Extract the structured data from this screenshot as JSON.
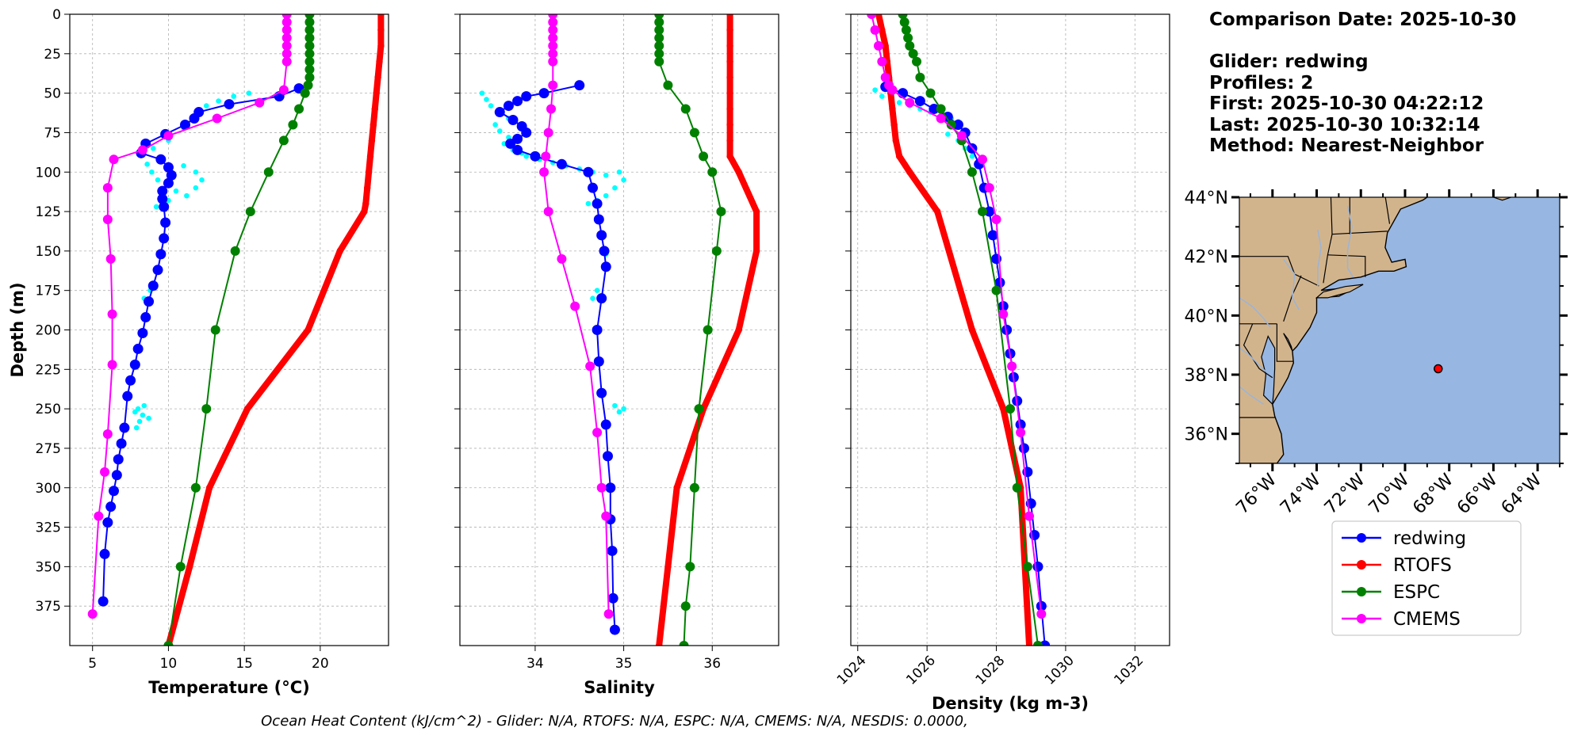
{
  "info": {
    "comparison_date": "Comparison Date: 2025-10-30",
    "glider": "Glider: redwing",
    "profiles": "Profiles: 2",
    "first": "First: 2025-10-30 04:22:12",
    "last": "Last: 2025-10-30 10:32:14",
    "method": "Method: Nearest-Neighbor"
  },
  "footer": "Ocean Heat Content (kJ/cm^2) - Glider: N/A,  RTOFS: N/A,  ESPC: N/A,  CMEMS: N/A,  NESDIS: 0.0000,",
  "colors": {
    "redwing": "#0000ff",
    "RTOFS": "#ff0000",
    "ESPC": "#008000",
    "CMEMS": "#ff00ff",
    "raw": "#00ffff",
    "land": "#d2b48c",
    "ocean": "#97b6e1"
  },
  "chart_data": [
    {
      "type": "line",
      "title": "",
      "xlabel": "Temperature (°C)",
      "ylabel": "Depth (m)",
      "xlim": [
        3.5,
        24.5
      ],
      "ylim": [
        400,
        0
      ],
      "xticks": [
        5,
        10,
        15,
        20
      ],
      "yticks": [
        0,
        25,
        50,
        75,
        100,
        125,
        150,
        175,
        200,
        225,
        250,
        275,
        300,
        325,
        350,
        375
      ],
      "grid": true,
      "raw": {
        "name": "redwing raw",
        "color": "cyan",
        "x": [
          12.0,
          12.5,
          13.3,
          14.3,
          15.3,
          11.8,
          11.0,
          10.0,
          9.0,
          8.3,
          8.6,
          8.9,
          9.3,
          9.9,
          10.5,
          11.2,
          11.8,
          12.2,
          11.8,
          11.0,
          10.0,
          9.2,
          8.8,
          8.4,
          8.0,
          7.8,
          8.3,
          8.7,
          8.4,
          8.1,
          7.9
        ],
        "y": [
          62,
          58,
          55,
          52,
          50,
          66,
          72,
          80,
          85,
          88,
          95,
          100,
          105,
          108,
          112,
          115,
          110,
          105,
          100,
          96,
          118,
          122,
          175,
          180,
          250,
          252,
          254,
          256,
          248,
          258,
          262
        ]
      },
      "series": [
        {
          "name": "redwing",
          "color": "blue",
          "x": [
            18.6,
            17.3,
            14.0,
            12.0,
            11.7,
            11.1,
            9.8,
            8.5,
            8.2,
            9.5,
            10.0,
            10.2,
            10.0,
            9.6,
            9.6,
            9.7,
            9.8,
            9.7,
            9.5,
            9.3,
            9.0,
            8.7,
            8.5,
            8.3,
            8.0,
            7.8,
            7.5,
            7.3,
            7.1,
            6.9,
            6.7,
            6.6,
            6.4,
            6.2,
            6.0,
            5.8,
            5.7
          ],
          "y": [
            47,
            52,
            57,
            62,
            66,
            70,
            76,
            82,
            88,
            92,
            97,
            102,
            107,
            112,
            117,
            122,
            132,
            142,
            152,
            162,
            172,
            182,
            192,
            202,
            212,
            222,
            232,
            242,
            262,
            272,
            282,
            292,
            302,
            312,
            322,
            342,
            372
          ]
        },
        {
          "name": "RTOFS",
          "color": "red",
          "x": [
            24.0,
            24.0,
            24.0,
            23.9,
            23.8,
            23.7,
            23.6,
            23.5,
            23.4,
            23.3,
            23.2,
            23.1,
            23.0,
            22.9,
            21.3,
            19.2,
            15.2,
            12.7,
            11.4,
            10.0
          ],
          "y": [
            0,
            10,
            20,
            30,
            40,
            50,
            60,
            70,
            80,
            90,
            100,
            110,
            120,
            125,
            150,
            200,
            250,
            300,
            350,
            400
          ]
        },
        {
          "name": "ESPC",
          "color": "green",
          "x": [
            19.3,
            19.3,
            19.3,
            19.3,
            19.3,
            19.3,
            19.3,
            19.3,
            19.3,
            19.2,
            19.0,
            18.6,
            18.2,
            17.6,
            16.6,
            15.4,
            14.4,
            13.1,
            12.5,
            11.8,
            10.8,
            10.0
          ],
          "y": [
            0,
            5,
            10,
            15,
            20,
            25,
            30,
            35,
            40,
            45,
            50,
            60,
            70,
            80,
            100,
            125,
            150,
            200,
            250,
            300,
            350,
            400
          ]
        },
        {
          "name": "CMEMS",
          "color": "magenta",
          "x": [
            17.8,
            17.8,
            17.8,
            17.8,
            17.8,
            17.8,
            17.8,
            17.6,
            16.0,
            13.2,
            10.0,
            8.3,
            6.4,
            6.0,
            6.0,
            6.2,
            6.3,
            6.3,
            6.0,
            5.8,
            5.4,
            5.0
          ],
          "y": [
            0,
            5,
            10,
            15,
            20,
            25,
            30,
            48,
            56,
            66,
            77,
            86,
            92,
            110,
            130,
            155,
            190,
            222,
            266,
            290,
            318,
            380
          ]
        }
      ]
    },
    {
      "type": "line",
      "title": "",
      "xlabel": "Salinity",
      "ylabel": "",
      "xlim": [
        33.15,
        36.75
      ],
      "ylim": [
        400,
        0
      ],
      "xticks": [
        34,
        35,
        36
      ],
      "yticks": [
        0,
        25,
        50,
        75,
        100,
        125,
        150,
        175,
        200,
        225,
        250,
        275,
        300,
        325,
        350,
        375
      ],
      "grid": true,
      "raw": {
        "name": "redwing raw",
        "color": "cyan",
        "x": [
          33.4,
          33.45,
          33.5,
          33.6,
          33.7,
          33.55,
          33.6,
          33.7,
          33.65,
          33.75,
          33.85,
          33.9,
          34.05,
          34.2,
          34.35,
          34.5,
          34.65,
          34.8,
          34.95,
          35.0,
          34.9,
          34.8,
          34.7,
          34.6,
          34.9,
          34.95,
          35.0,
          34.7,
          34.65,
          34.8
        ],
        "y": [
          50,
          54,
          58,
          62,
          66,
          70,
          74,
          78,
          82,
          86,
          88,
          90,
          92,
          94,
          96,
          98,
          100,
          102,
          100,
          105,
          110,
          115,
          118,
          120,
          248,
          252,
          250,
          175,
          180,
          152
        ]
      },
      "series": [
        {
          "name": "redwing",
          "color": "blue",
          "x": [
            34.5,
            34.1,
            33.9,
            33.8,
            33.7,
            33.6,
            33.75,
            33.85,
            33.9,
            33.8,
            33.72,
            33.8,
            34.0,
            34.3,
            34.6,
            34.65,
            34.7,
            34.72,
            34.75,
            34.78,
            34.8,
            34.75,
            34.7,
            34.72,
            34.75,
            34.8,
            34.82,
            34.85,
            34.85,
            34.87,
            34.88,
            34.9
          ],
          "y": [
            45,
            50,
            52,
            55,
            58,
            62,
            67,
            71,
            75,
            79,
            82,
            86,
            90,
            95,
            100,
            110,
            120,
            130,
            140,
            150,
            160,
            180,
            200,
            220,
            240,
            260,
            280,
            300,
            320,
            340,
            370,
            390
          ]
        },
        {
          "name": "RTOFS",
          "color": "red",
          "x": [
            36.2,
            36.2,
            36.2,
            36.2,
            36.2,
            36.2,
            36.2,
            36.2,
            36.2,
            36.2,
            36.3,
            36.5,
            36.5,
            36.3,
            35.9,
            35.6,
            35.5,
            35.4
          ],
          "y": [
            0,
            10,
            20,
            30,
            40,
            50,
            60,
            70,
            80,
            90,
            100,
            125,
            150,
            200,
            250,
            300,
            350,
            400
          ]
        },
        {
          "name": "ESPC",
          "color": "green",
          "x": [
            35.4,
            35.4,
            35.4,
            35.4,
            35.4,
            35.4,
            35.4,
            35.5,
            35.7,
            35.8,
            35.9,
            36.0,
            36.1,
            36.05,
            35.95,
            35.85,
            35.8,
            35.75,
            35.7,
            35.68
          ],
          "y": [
            0,
            5,
            10,
            15,
            20,
            25,
            30,
            45,
            60,
            75,
            90,
            100,
            125,
            150,
            200,
            250,
            300,
            350,
            375,
            400
          ]
        },
        {
          "name": "CMEMS",
          "color": "magenta",
          "x": [
            34.2,
            34.2,
            34.2,
            34.2,
            34.2,
            34.2,
            34.2,
            34.2,
            34.18,
            34.15,
            34.12,
            34.1,
            34.15,
            34.3,
            34.45,
            34.62,
            34.7,
            34.75,
            34.8,
            34.83
          ],
          "y": [
            0,
            5,
            10,
            15,
            20,
            25,
            30,
            45,
            60,
            75,
            90,
            100,
            125,
            155,
            185,
            223,
            265,
            300,
            318,
            380
          ]
        }
      ]
    },
    {
      "type": "line",
      "title": "",
      "xlabel": "Density (kg m-3)",
      "ylabel": "",
      "xlim": [
        1023.8,
        1033.0
      ],
      "ylim": [
        400,
        0
      ],
      "xticks": [
        1024,
        1026,
        1028,
        1030,
        1032
      ],
      "yticks": [
        0,
        25,
        50,
        75,
        100,
        125,
        150,
        175,
        200,
        225,
        250,
        275,
        300,
        325,
        350,
        375
      ],
      "grid": true,
      "raw": {
        "name": "redwing raw",
        "color": "cyan",
        "x": [
          1024.5,
          1024.7,
          1025.2,
          1025.5,
          1025.8,
          1026.1,
          1026.4,
          1026.7,
          1026.9,
          1026.8,
          1026.6,
          1026.9,
          1027.1,
          1027.3,
          1027.5
        ],
        "y": [
          48,
          52,
          56,
          58,
          60,
          62,
          64,
          66,
          68,
          72,
          76,
          80,
          85,
          90,
          95
        ]
      },
      "series": [
        {
          "name": "redwing",
          "color": "blue",
          "x": [
            1024.8,
            1025.3,
            1025.8,
            1026.2,
            1026.6,
            1026.9,
            1027.1,
            1027.3,
            1027.5,
            1027.65,
            1027.8,
            1027.9,
            1028.0,
            1028.1,
            1028.2,
            1028.3,
            1028.4,
            1028.5,
            1028.6,
            1028.7,
            1028.8,
            1028.9,
            1029.0,
            1029.1,
            1029.2,
            1029.3,
            1029.4
          ],
          "y": [
            46,
            50,
            55,
            60,
            65,
            70,
            75,
            85,
            95,
            110,
            125,
            140,
            155,
            170,
            185,
            200,
            215,
            230,
            245,
            260,
            275,
            290,
            310,
            330,
            350,
            375,
            400
          ]
        },
        {
          "name": "RTOFS",
          "color": "red",
          "x": [
            1024.6,
            1024.7,
            1024.8,
            1024.85,
            1024.9,
            1024.95,
            1025.0,
            1025.05,
            1025.1,
            1025.2,
            1025.5,
            1026.3,
            1027.3,
            1028.2,
            1028.7,
            1028.95
          ],
          "y": [
            0,
            10,
            20,
            30,
            40,
            50,
            60,
            70,
            80,
            90,
            100,
            125,
            200,
            250,
            300,
            400
          ]
        },
        {
          "name": "ESPC",
          "color": "green",
          "x": [
            1025.3,
            1025.35,
            1025.4,
            1025.45,
            1025.5,
            1025.6,
            1025.7,
            1025.8,
            1026.1,
            1026.4,
            1026.7,
            1027.0,
            1027.3,
            1027.6,
            1028.0,
            1028.4,
            1028.6,
            1028.9,
            1029.2
          ],
          "y": [
            0,
            5,
            10,
            15,
            20,
            25,
            30,
            40,
            50,
            60,
            70,
            80,
            100,
            125,
            175,
            250,
            300,
            350,
            400
          ]
        },
        {
          "name": "CMEMS",
          "color": "magenta",
          "x": [
            1024.4,
            1024.5,
            1024.6,
            1024.7,
            1024.8,
            1024.9,
            1025.0,
            1025.5,
            1026.4,
            1027.0,
            1027.6,
            1027.8,
            1028.0,
            1028.2,
            1028.45,
            1028.7,
            1028.95,
            1029.3
          ],
          "y": [
            0,
            10,
            20,
            30,
            40,
            45,
            48,
            56,
            66,
            77,
            92,
            110,
            130,
            190,
            223,
            265,
            318,
            380
          ]
        }
      ]
    }
  ],
  "map": {
    "lat_labels": [
      "44°N",
      "42°N",
      "40°N",
      "38°N",
      "36°N"
    ],
    "lon_labels": [
      "76°W",
      "74°W",
      "72°W",
      "70°W",
      "68°W",
      "66°W",
      "64°W"
    ],
    "lon_range": [
      -77.5,
      -63.0
    ],
    "lat_range": [
      35.0,
      44.0
    ],
    "glider_position": {
      "lon": -68.5,
      "lat": 38.2
    }
  },
  "legend": [
    "redwing",
    "RTOFS",
    "ESPC",
    "CMEMS"
  ]
}
